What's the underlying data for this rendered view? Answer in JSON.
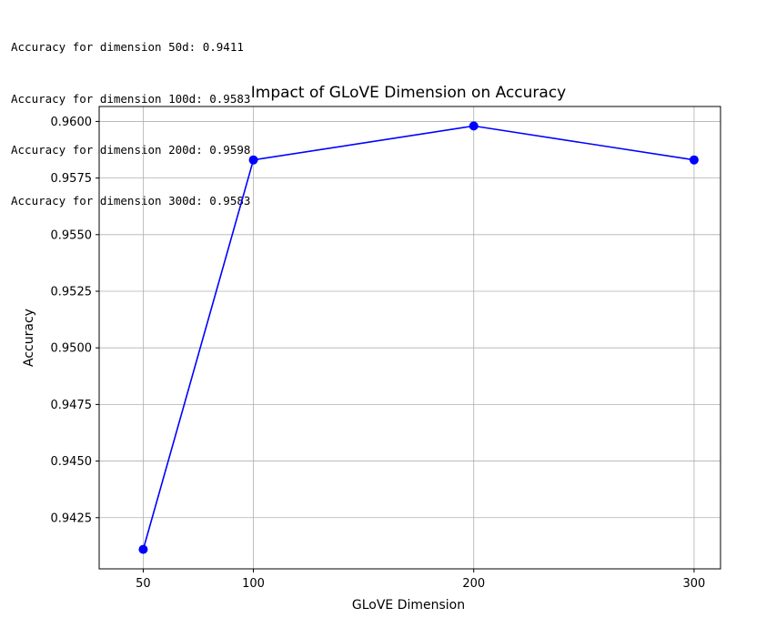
{
  "console": {
    "lines": [
      "Accuracy for dimension 50d: 0.9411",
      "Accuracy for dimension 100d: 0.9583",
      "Accuracy for dimension 200d: 0.9598",
      "Accuracy for dimension 300d: 0.9583"
    ]
  },
  "chart_data": {
    "type": "line",
    "title": "Impact of GLoVE Dimension on Accuracy",
    "xlabel": "GLoVE Dimension",
    "ylabel": "Accuracy",
    "x": [
      50,
      100,
      200,
      300
    ],
    "series": [
      {
        "values": [
          0.9411,
          0.9583,
          0.9598,
          0.9583
        ],
        "color": "#0000ff",
        "marker": "circle"
      }
    ],
    "xticks": [
      "50",
      "100",
      "200",
      "300"
    ],
    "yticks": [
      "0.9425",
      "0.9450",
      "0.9475",
      "0.9500",
      "0.9525",
      "0.9550",
      "0.9575",
      "0.9600"
    ],
    "xlim": [
      30,
      312
    ],
    "ylim": [
      0.94024,
      0.96066
    ],
    "grid": true
  }
}
